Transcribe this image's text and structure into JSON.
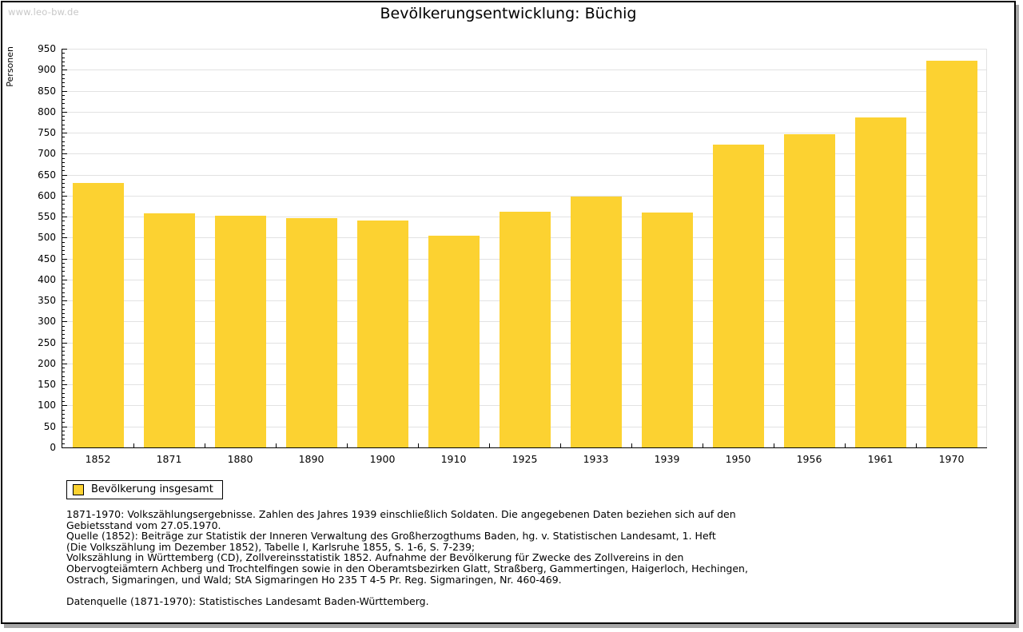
{
  "watermark": "www.leo-bw.de",
  "title": "Bevölkerungsentwicklung: Büchig",
  "legend": {
    "label": "Bevölkerung insgesamt"
  },
  "colors": {
    "bar": "#FCD231",
    "grid": "#E2E2E2",
    "axis": "#000000",
    "watermark": "#C8C8C8",
    "shadow": "#A6A6A6"
  },
  "chart_data": {
    "type": "bar",
    "title": "Bevölkerungsentwicklung: Büchig",
    "ylabel": "Personen",
    "xlabel": "",
    "categories": [
      "1852",
      "1871",
      "1880",
      "1890",
      "1900",
      "1910",
      "1925",
      "1933",
      "1939",
      "1950",
      "1956",
      "1961",
      "1970"
    ],
    "values": [
      630,
      557,
      552,
      546,
      541,
      505,
      562,
      597,
      560,
      722,
      747,
      787,
      922
    ],
    "series_name": "Bevölkerung insgesamt",
    "ylim": [
      0,
      950
    ],
    "ytick_step": 50,
    "ytick_minor_step": 10,
    "grid": true,
    "legend_position": "bottom-left"
  },
  "footnotes": {
    "paragraphs": [
      {
        "lines": [
          "1871-1970: Volkszählungsergebnisse. Zahlen des Jahres 1939 einschließlich Soldaten. Die angegebenen Daten beziehen sich auf den",
          "Gebietsstand vom 27.05.1970."
        ]
      },
      {
        "lines": [
          "Quelle (1852): Beiträge zur Statistik der Inneren Verwaltung des Großherzogthums Baden, hg. v. Statistischen Landesamt, 1. Heft",
          "(Die Volkszählung im Dezember 1852), Tabelle I, Karlsruhe 1855, S. 1-6, S. 7-239;",
          "Volkszählung in Württemberg (CD), Zollvereinsstatistik 1852. Aufnahme der Bevölkerung für Zwecke des Zollvereins in den",
          "Obervogteiämtern Achberg und Trochtelfingen sowie in den Oberamtsbezirken Glatt, Straßberg, Gammertingen, Haigerloch, Hechingen,",
          "Ostrach, Sigmaringen, und Wald; StA Sigmaringen Ho 235 T 4-5 Pr. Reg. Sigmaringen, Nr. 460-469."
        ]
      },
      {
        "lines": [
          "Datenquelle (1871-1970): Statistisches Landesamt Baden-Württemberg."
        ],
        "gap_before": true
      }
    ]
  }
}
